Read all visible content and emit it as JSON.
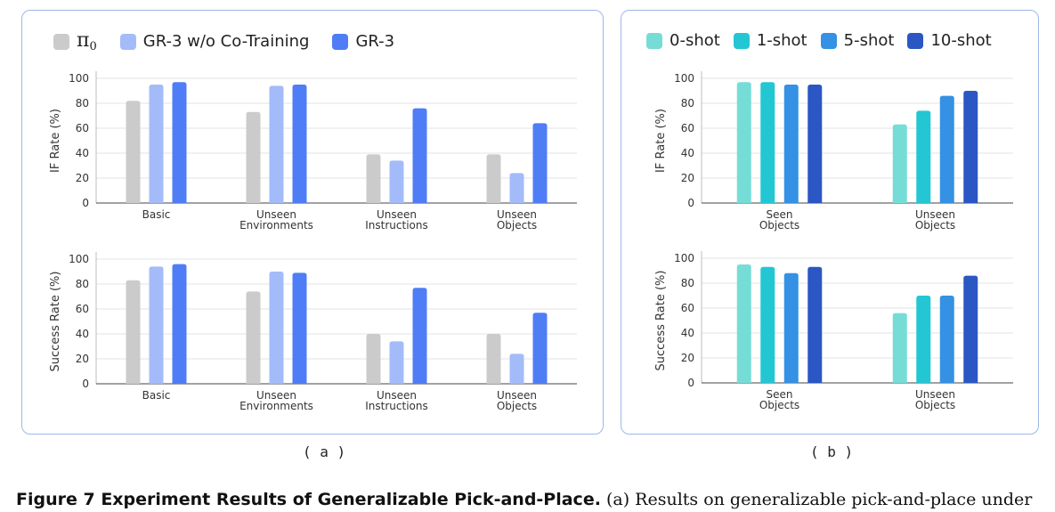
{
  "legend_a": [
    {
      "label": "π",
      "sub": "0",
      "color": "#cbcbcb"
    },
    {
      "label": "GR-3 w/o Co-Training",
      "color": "#a4bbf9"
    },
    {
      "label": "GR-3",
      "color": "#4f7df6"
    }
  ],
  "legend_b": [
    {
      "label": "0-shot",
      "color": "#76ddd6"
    },
    {
      "label": "1-shot",
      "color": "#22c7d3"
    },
    {
      "label": "5-shot",
      "color": "#3491e3"
    },
    {
      "label": "10-shot",
      "color": "#2b57c4"
    }
  ],
  "panel_labels": {
    "a": "( a )",
    "b": "( b )"
  },
  "caption": {
    "bold": "Figure 7  Experiment Results of Generalizable Pick-and-Place.",
    "text": " (a) Results on generalizable pick-and-place under"
  },
  "chart_data": [
    {
      "id": "a-if",
      "type": "bar",
      "ylabel": "IF Rate (%)",
      "ylim": [
        0,
        100
      ],
      "yticks": [
        0,
        20,
        40,
        60,
        80,
        100
      ],
      "grid": true,
      "categories": [
        [
          "Basic"
        ],
        [
          "Unseen",
          "Environments"
        ],
        [
          "Unseen",
          "Instructions"
        ],
        [
          "Unseen",
          "Objects"
        ]
      ],
      "series": [
        {
          "name": "π0",
          "color": "#cbcbcb",
          "values": [
            82,
            73,
            39,
            39
          ]
        },
        {
          "name": "GR-3 w/o Co-Training",
          "color": "#a4bbf9",
          "values": [
            95,
            94,
            34,
            24
          ]
        },
        {
          "name": "GR-3",
          "color": "#4f7df6",
          "values": [
            97,
            95,
            76,
            64
          ]
        }
      ]
    },
    {
      "id": "a-success",
      "type": "bar",
      "ylabel": "Success Rate (%)",
      "ylim": [
        0,
        100
      ],
      "yticks": [
        0,
        20,
        40,
        60,
        80,
        100
      ],
      "grid": true,
      "categories": [
        [
          "Basic"
        ],
        [
          "Unseen",
          "Environments"
        ],
        [
          "Unseen",
          "Instructions"
        ],
        [
          "Unseen",
          "Objects"
        ]
      ],
      "series": [
        {
          "name": "π0",
          "color": "#cbcbcb",
          "values": [
            83,
            74,
            40,
            40
          ]
        },
        {
          "name": "GR-3 w/o Co-Training",
          "color": "#a4bbf9",
          "values": [
            94,
            90,
            34,
            24
          ]
        },
        {
          "name": "GR-3",
          "color": "#4f7df6",
          "values": [
            96,
            89,
            77,
            57
          ]
        }
      ]
    },
    {
      "id": "b-if",
      "type": "bar",
      "ylabel": "IF Rate (%)",
      "ylim": [
        0,
        100
      ],
      "yticks": [
        0,
        20,
        40,
        60,
        80,
        100
      ],
      "grid": true,
      "categories": [
        [
          "Seen",
          "Objects"
        ],
        [
          "Unseen",
          "Objects"
        ]
      ],
      "series": [
        {
          "name": "0-shot",
          "color": "#76ddd6",
          "values": [
            97,
            63
          ]
        },
        {
          "name": "1-shot",
          "color": "#22c7d3",
          "values": [
            97,
            74
          ]
        },
        {
          "name": "5-shot",
          "color": "#3491e3",
          "values": [
            95,
            86
          ]
        },
        {
          "name": "10-shot",
          "color": "#2b57c4",
          "values": [
            95,
            90
          ]
        }
      ]
    },
    {
      "id": "b-success",
      "type": "bar",
      "ylabel": "Success Rate (%)",
      "ylim": [
        0,
        100
      ],
      "yticks": [
        0,
        20,
        40,
        60,
        80,
        100
      ],
      "grid": true,
      "categories": [
        [
          "Seen",
          "Objects"
        ],
        [
          "Unseen",
          "Objects"
        ]
      ],
      "series": [
        {
          "name": "0-shot",
          "color": "#76ddd6",
          "values": [
            95,
            56
          ]
        },
        {
          "name": "1-shot",
          "color": "#22c7d3",
          "values": [
            93,
            70
          ]
        },
        {
          "name": "5-shot",
          "color": "#3491e3",
          "values": [
            88,
            70
          ]
        },
        {
          "name": "10-shot",
          "color": "#2b57c4",
          "values": [
            93,
            86
          ]
        }
      ]
    }
  ]
}
